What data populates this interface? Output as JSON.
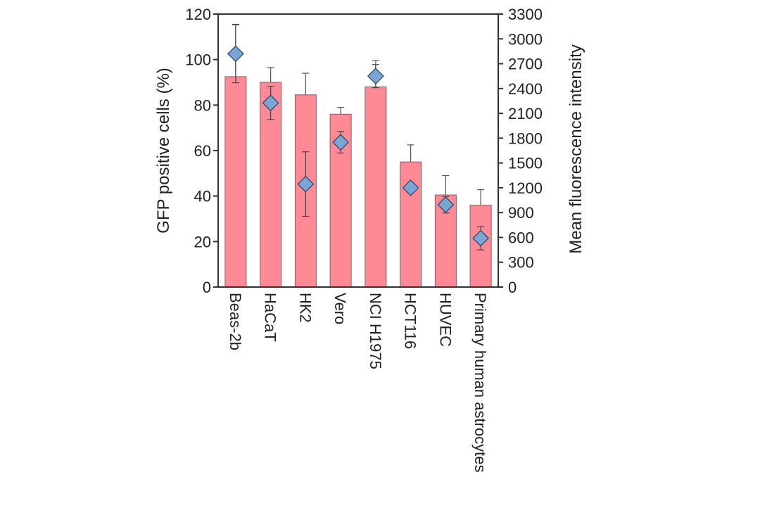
{
  "chart_data": {
    "type": "bar",
    "categories": [
      "Beas-2b",
      "HaCaT",
      "HK2",
      "Vero",
      "NCI H1975",
      "HCT116",
      "HUVEC",
      "Primary human astrocytes"
    ],
    "ylabel": "GFP positive cells (%)",
    "y2label": "Mean fluorescence intensity",
    "ylim": [
      0,
      120
    ],
    "y2lim": [
      0,
      3300
    ],
    "yticks": [
      0,
      20,
      40,
      60,
      80,
      100,
      120
    ],
    "y2ticks": [
      0,
      300,
      600,
      900,
      1200,
      1500,
      1800,
      2100,
      2400,
      2700,
      3000,
      3300
    ],
    "grid": false,
    "series": [
      {
        "kind": "bar",
        "axis": "left",
        "values": [
          92.5,
          90,
          84.5,
          76,
          88,
          55,
          40.5,
          36
        ],
        "errors": [
          23,
          6.5,
          9.5,
          3,
          11.5,
          7.5,
          8.5,
          6.8
        ],
        "color": "#ff8a96"
      },
      {
        "kind": "marker",
        "axis": "right",
        "values": [
          2820,
          2225,
          1245,
          1750,
          2550,
          1200,
          995,
          590
        ],
        "errors": [
          350,
          200,
          390,
          130,
          140,
          60,
          100,
          140
        ],
        "color": "#7aa6d4"
      }
    ]
  }
}
